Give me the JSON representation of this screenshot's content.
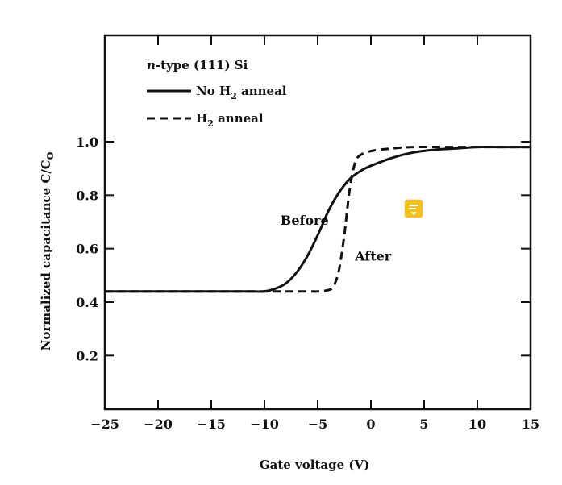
{
  "chart_data": {
    "type": "line",
    "title": "",
    "xlabel": "Gate voltage (V)",
    "ylabel": "Normalized capacitance C/C",
    "ylabel_subscript": "O",
    "xlim": [
      -25,
      15
    ],
    "ylim": [
      0.2,
      1.2
    ],
    "xticks": [
      -25,
      -20,
      -15,
      -10,
      -5,
      0,
      5,
      10,
      15
    ],
    "yticks": [
      0.2,
      0.4,
      0.6,
      0.8,
      1.0
    ],
    "xtick_labels": [
      "−25",
      "−20",
      "−15",
      "−10",
      "−5",
      "0",
      "5",
      "10",
      "15"
    ],
    "ytick_labels": [
      "0.2",
      "0.4",
      "0.6",
      "0.8",
      "1.0"
    ],
    "grid": false,
    "legend": {
      "placement": "top-left",
      "heading_italic": "n",
      "heading_rest": "-type (111) Si",
      "entries": [
        {
          "prefix": "No H",
          "sub": "2",
          "suffix": " anneal",
          "style": "solid"
        },
        {
          "prefix": "H",
          "sub": "2",
          "suffix": " anneal",
          "style": "dashed"
        }
      ]
    },
    "annotations": [
      {
        "text": "Before",
        "x": -8.5,
        "y": 0.69
      },
      {
        "text": "After",
        "x": -1.5,
        "y": 0.555
      }
    ],
    "series": [
      {
        "name": "No H2 anneal",
        "style": "solid",
        "x": [
          -25,
          -15,
          -12,
          -11,
          -10,
          -9,
          -8,
          -7,
          -6,
          -5,
          -4,
          -3,
          -2,
          -1,
          0,
          2,
          4,
          6,
          8,
          10,
          12,
          15
        ],
        "y": [
          0.44,
          0.44,
          0.44,
          0.44,
          0.44,
          0.45,
          0.47,
          0.51,
          0.57,
          0.65,
          0.74,
          0.81,
          0.86,
          0.89,
          0.91,
          0.94,
          0.96,
          0.97,
          0.975,
          0.98,
          0.98,
          0.98
        ]
      },
      {
        "name": "H2 anneal",
        "style": "dashed",
        "x": [
          -25,
          -15,
          -10,
          -6,
          -5,
          -4,
          -3.5,
          -3,
          -2.5,
          -2,
          -1.5,
          -1,
          0,
          2,
          4,
          8,
          12,
          15
        ],
        "y": [
          0.44,
          0.44,
          0.44,
          0.44,
          0.44,
          0.445,
          0.46,
          0.52,
          0.65,
          0.82,
          0.92,
          0.95,
          0.965,
          0.975,
          0.98,
          0.98,
          0.98,
          0.98
        ]
      }
    ]
  },
  "note_icon": {
    "name": "note-icon",
    "color": "#f2c21b"
  }
}
